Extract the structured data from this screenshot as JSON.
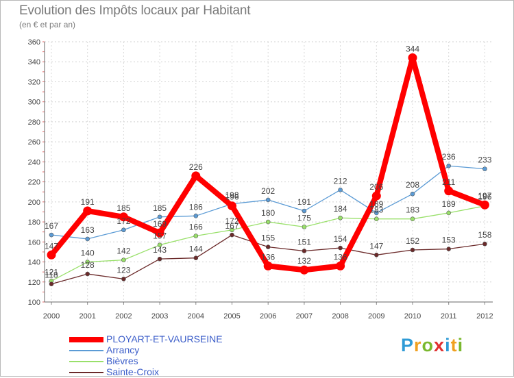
{
  "title": "Evolution des Impôts locaux par Habitant",
  "subtitle": "(en € et par an)",
  "brand": {
    "letters": [
      {
        "ch": "P",
        "color": "#2f9bd6"
      },
      {
        "ch": "r",
        "color": "#f0a020"
      },
      {
        "ch": "o",
        "color": "#7ab82e"
      },
      {
        "ch": "x",
        "color": "#e03030"
      },
      {
        "ch": "i",
        "color": "#2f9bd6"
      },
      {
        "ch": "t",
        "color": "#f0a020"
      },
      {
        "ch": "i",
        "color": "#7ab82e"
      }
    ]
  },
  "chart_data": {
    "type": "line",
    "title": "Evolution des Impôts locaux par Habitant",
    "subtitle": "(en € et par an)",
    "xlabel": "",
    "ylabel": "",
    "categories": [
      "2000",
      "2001",
      "2002",
      "2003",
      "2004",
      "2005",
      "2006",
      "2007",
      "2008",
      "2009",
      "2010",
      "2011",
      "2012"
    ],
    "ylim": [
      100,
      360
    ],
    "yticks": [
      100,
      120,
      140,
      160,
      180,
      200,
      220,
      240,
      260,
      280,
      300,
      320,
      340,
      360
    ],
    "grid": true,
    "legend_position": "bottom-left",
    "series": [
      {
        "name": "PLOYART-ET-VAURSEINE",
        "color": "#ff0000",
        "emphasis": true,
        "values": [
          147,
          191,
          185,
          169,
          226,
          196,
          136,
          132,
          136,
          206,
          344,
          211,
          197
        ],
        "labels": [
          "147",
          "191",
          "185",
          "169",
          "226",
          "196",
          "136",
          "132",
          "136",
          "206",
          "344",
          "211",
          "197"
        ]
      },
      {
        "name": "Arrancy",
        "color": "#5b9bd5",
        "values": [
          167,
          163,
          172,
          185,
          186,
          198,
          202,
          191,
          212,
          189,
          208,
          236,
          233
        ],
        "labels": [
          "167",
          "163",
          "172",
          "185",
          "186",
          "198",
          "202",
          "191",
          "212",
          "189",
          "208",
          "236",
          "233"
        ]
      },
      {
        "name": "Bièvres",
        "color": "#99e06a",
        "values": [
          121,
          140,
          142,
          157,
          166,
          172,
          180,
          175,
          184,
          183,
          183,
          189,
          196
        ],
        "labels": [
          "121",
          "140",
          "142",
          "157",
          "166",
          "172",
          "180",
          "175",
          "184",
          "183",
          "183",
          "189",
          "196"
        ]
      },
      {
        "name": "Sainte-Croix",
        "color": "#6b2a2a",
        "values": [
          118,
          128,
          123,
          143,
          144,
          167,
          155,
          151,
          154,
          147,
          152,
          153,
          158
        ],
        "labels": [
          "118",
          "128",
          "123",
          "143",
          "144",
          "167",
          "155",
          "151",
          "154",
          "147",
          "152",
          "153",
          "158"
        ]
      }
    ]
  }
}
